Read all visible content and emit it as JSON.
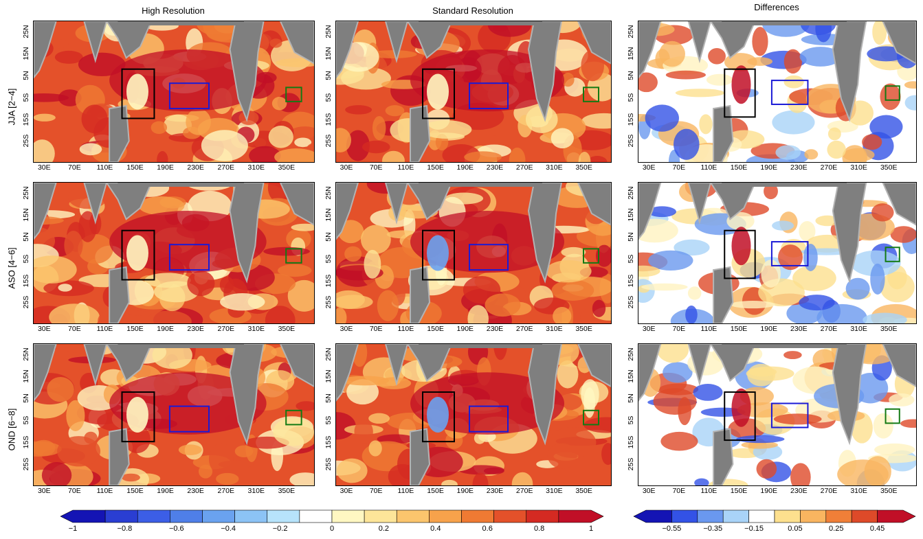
{
  "columns": [
    {
      "title": "High Resolution"
    },
    {
      "title": "Standard Resolution"
    },
    {
      "title": "Differences"
    }
  ],
  "rows": [
    {
      "label": "JJA [2−4]"
    },
    {
      "label": "ASO [4−6]"
    },
    {
      "label": "OND [6−8]"
    }
  ],
  "x_ticks": [
    "30E",
    "70E",
    "110E",
    "150E",
    "190E",
    "230E",
    "270E",
    "310E",
    "350E"
  ],
  "y_ticks": [
    "25N",
    "15N",
    "5N",
    "5S",
    "15S",
    "25S"
  ],
  "colorbars": [
    {
      "labels": [
        "−1",
        "−0.8",
        "−0.6",
        "−0.4",
        "−0.2",
        "0",
        "0.2",
        "0.4",
        "0.6",
        "0.8",
        "1"
      ],
      "colors": [
        "#1414b4",
        "#2a3ed2",
        "#3c5ee6",
        "#4f7fe8",
        "#6aa2ef",
        "#8cc3f5",
        "#b7e3fb",
        "#ffffff",
        "#fff7c2",
        "#fde599",
        "#fbc56d",
        "#f7a24b",
        "#ef7a33",
        "#e4512a",
        "#d42a22",
        "#c10f27"
      ]
    },
    {
      "labels": [
        "−0.55",
        "−0.35",
        "−0.15",
        "0.05",
        "0.25",
        "0.45"
      ],
      "colors": [
        "#1414b4",
        "#3352e6",
        "#6a98ef",
        "#a9d3f8",
        "#ffffff",
        "#fde08e",
        "#f9b560",
        "#f07f38",
        "#de4a29",
        "#c10f27"
      ]
    }
  ],
  "colors": {
    "land": "#7f7f7f",
    "shelf": "#b3b3b3",
    "box_black": "#000000",
    "box_blue": "#1a1ad6",
    "box_green": "#137a13"
  }
}
